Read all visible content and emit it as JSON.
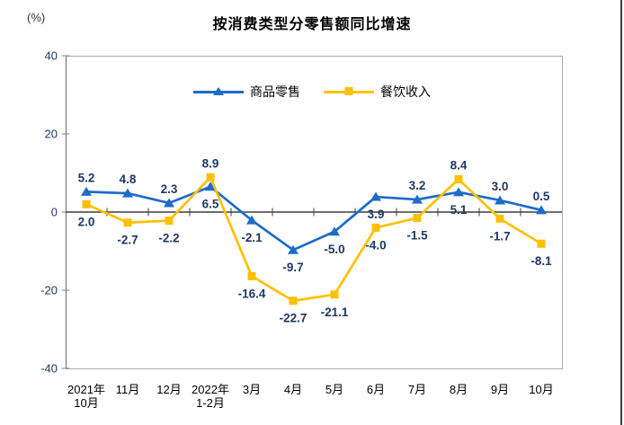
{
  "chart_data": {
    "type": "line",
    "title": "按消费类型分零售额同比增速",
    "unit_label": "(%)",
    "categories": [
      [
        "2021年",
        "10月"
      ],
      [
        "11月"
      ],
      [
        "12月"
      ],
      [
        "2022年",
        "1-2月"
      ],
      [
        "3月"
      ],
      [
        "4月"
      ],
      [
        "5月"
      ],
      [
        "6月"
      ],
      [
        "7月"
      ],
      [
        "8月"
      ],
      [
        "9月"
      ],
      [
        "10月"
      ]
    ],
    "series": [
      {
        "name": "商品零售",
        "color": "#1E6BC8",
        "marker": "triangle",
        "values": [
          5.2,
          4.8,
          2.3,
          6.5,
          -2.1,
          -9.7,
          -5.0,
          3.9,
          3.2,
          5.1,
          3.0,
          0.5
        ],
        "label_pos": [
          "above",
          "above",
          "above",
          "below",
          "below",
          "below",
          "below",
          "below",
          "above",
          "below",
          "above",
          "above"
        ]
      },
      {
        "name": "餐饮收入",
        "color": "#FFC000",
        "marker": "square",
        "values": [
          2.0,
          -2.7,
          -2.2,
          8.9,
          -16.4,
          -22.7,
          -21.1,
          -4.0,
          -1.5,
          8.4,
          -1.7,
          -8.1
        ],
        "label_pos": [
          "below",
          "below",
          "below",
          "above",
          "below",
          "below",
          "below",
          "below",
          "below",
          "above",
          "below",
          "below"
        ]
      }
    ],
    "ylim": [
      -40,
      40
    ],
    "yticks": [
      40,
      20,
      0,
      -20,
      -40
    ],
    "grid": false,
    "legend_position": "top-center",
    "colors": {
      "axis_text": "#1F3864",
      "data_label": "#1F3864",
      "category_text": "#000000",
      "axis_line": "#7F7F7F",
      "plot_border": "#ACACAC",
      "zero_line": "#3F3F3F"
    }
  }
}
